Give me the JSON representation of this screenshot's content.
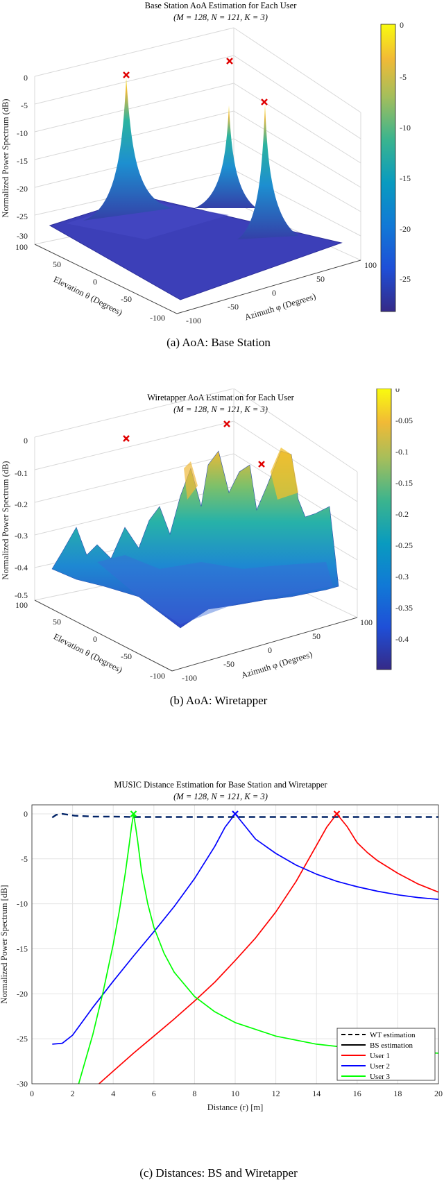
{
  "chart_data": [
    {
      "id": "a",
      "type": "surface3d",
      "title": "Base Station AoA Estimation for Each User",
      "subtitle": "(M = 128, N = 121, K = 3)",
      "xlabel": "Azimuth φ (Degrees)",
      "ylabel": "Elevation θ (Degrees)",
      "zlabel": "Normalized Power Spectrum (dB)",
      "x_ticks": [
        "-100",
        "-50",
        "0",
        "50",
        "100"
      ],
      "y_ticks": [
        "100",
        "50",
        "0",
        "-50",
        "-100"
      ],
      "z_ticks": [
        "0",
        "-5",
        "-10",
        "-15",
        "-20",
        "-25",
        "-30"
      ],
      "zlim": [
        -30,
        0
      ],
      "colorbar_ticks": [
        "0",
        "-5",
        "-10",
        "-15",
        "-20",
        "-25"
      ],
      "colorbar_range": [
        -28,
        0
      ],
      "peaks_dB": [
        0,
        -5,
        -1
      ],
      "caption": "(a)  AoA: Base Station"
    },
    {
      "id": "b",
      "type": "surface3d",
      "title": "Wiretapper AoA Estimation for Each User",
      "subtitle": "(M = 128, N = 121, K = 3)",
      "xlabel": "Azimuth φ (Degrees)",
      "ylabel": "Elevation θ (Degrees)",
      "zlabel": "Normalized Power Spectrum (dB)",
      "x_ticks": [
        "-100",
        "-50",
        "0",
        "50",
        "100"
      ],
      "y_ticks": [
        "100",
        "50",
        "0",
        "-50",
        "-100"
      ],
      "z_ticks": [
        "0",
        "-0.1",
        "-0.2",
        "-0.3",
        "-0.4",
        "-0.5"
      ],
      "zlim": [
        -0.5,
        0
      ],
      "colorbar_ticks": [
        "0",
        "-0.05",
        "-0.1",
        "-0.15",
        "-0.2",
        "-0.25",
        "-0.3",
        "-0.35",
        "-0.4"
      ],
      "colorbar_range": [
        -0.45,
        0
      ],
      "caption": "(b)  AoA: Wiretapper"
    },
    {
      "id": "c",
      "type": "line",
      "title": "MUSIC Distance Estimation for Base Station and Wiretapper",
      "subtitle": "(M = 128, N = 121, K = 3)",
      "xlabel": "Distance (r) [m]",
      "ylabel": "Normalized Power Spectrum [dB]",
      "xlim": [
        0,
        20
      ],
      "ylim": [
        -30,
        1
      ],
      "x_ticks": [
        0,
        2,
        4,
        6,
        8,
        10,
        12,
        14,
        16,
        18,
        20
      ],
      "y_ticks": [
        0,
        -5,
        -10,
        -15,
        -20,
        -25,
        -30
      ],
      "legend": [
        "WT estimation",
        "BS estimation",
        "User 1",
        "User 2",
        "User 3"
      ],
      "legend_position": "bottom-right",
      "grid": true,
      "series": [
        {
          "name": "User 1",
          "color": "#ff0000",
          "peak": 15,
          "x": [
            3.3,
            4,
            5,
            6,
            7,
            8,
            9,
            10,
            11,
            12,
            13,
            14,
            14.5,
            15,
            15.5,
            16,
            16.5,
            17,
            18,
            19,
            20
          ],
          "y": [
            -30,
            -28.6,
            -26.6,
            -24.7,
            -22.8,
            -20.8,
            -18.7,
            -16.3,
            -13.8,
            -10.9,
            -7.5,
            -3.5,
            -1.5,
            0,
            -1.4,
            -3.2,
            -4.3,
            -5.2,
            -6.6,
            -7.8,
            -8.7
          ]
        },
        {
          "name": "User 2",
          "color": "#0000ff",
          "peak": 10,
          "x": [
            1,
            1.5,
            2,
            3,
            4,
            5,
            6,
            7,
            8,
            9,
            9.5,
            10,
            10.5,
            11,
            12,
            13,
            14,
            15,
            16,
            17,
            18,
            19,
            20
          ],
          "y": [
            -25.6,
            -25.5,
            -24.6,
            -21.5,
            -18.6,
            -15.8,
            -13.1,
            -10.3,
            -7.2,
            -3.6,
            -1.5,
            0,
            -1.4,
            -2.8,
            -4.4,
            -5.7,
            -6.7,
            -7.5,
            -8.1,
            -8.6,
            -9.0,
            -9.3,
            -9.5
          ]
        },
        {
          "name": "User 3",
          "color": "#00ff00",
          "peak": 5,
          "x": [
            2.3,
            3,
            3.5,
            4,
            4.3,
            4.6,
            4.8,
            4.9,
            5,
            5.1,
            5.2,
            5.4,
            5.7,
            6,
            6.5,
            7,
            8,
            9,
            10,
            12,
            14,
            16,
            18,
            20
          ],
          "y": [
            -30,
            -24.5,
            -19.8,
            -14.5,
            -10.8,
            -6.5,
            -3.2,
            -1.4,
            0,
            -1.4,
            -3.0,
            -6.5,
            -10.0,
            -12.6,
            -15.5,
            -17.6,
            -20.3,
            -22.0,
            -23.2,
            -24.7,
            -25.6,
            -26.1,
            -26.4,
            -26.6
          ]
        },
        {
          "name": "WT estimation",
          "color": "#002266",
          "dashed": true,
          "x": [
            1,
            1.2,
            1.5,
            1.8,
            2.1,
            2.5,
            3,
            4,
            5,
            6,
            8,
            10,
            12,
            14,
            16,
            18,
            20
          ],
          "y": [
            -0.4,
            -0.1,
            0,
            -0.1,
            -0.2,
            -0.25,
            -0.3,
            -0.3,
            -0.35,
            -0.35,
            -0.35,
            -0.35,
            -0.35,
            -0.35,
            -0.35,
            -0.35,
            -0.35
          ]
        }
      ],
      "markers": [
        {
          "x": 5,
          "y": 0,
          "color": "#00ff00"
        },
        {
          "x": 10,
          "y": 0,
          "color": "#0000ff"
        },
        {
          "x": 15,
          "y": 0,
          "color": "#ff0000"
        }
      ],
      "caption": "(c)  Distances: BS and Wiretapper"
    }
  ]
}
